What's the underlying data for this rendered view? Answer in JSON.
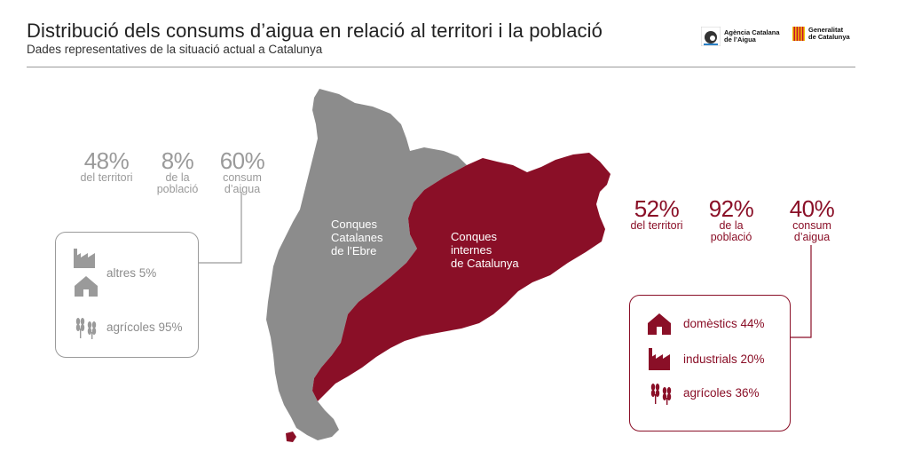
{
  "header": {
    "title": "Distribució dels consums d’aigua en relació al territori i la població",
    "subtitle": "Dades representatives de la situació actual a Catalunya"
  },
  "logos": {
    "aca": "Agència Catalana de l’Aigua",
    "aca_line1": "Agència Catalana",
    "aca_line2": "de l’Aigua",
    "gen_line1": "Generalitat",
    "gen_line2": "de Catalunya"
  },
  "colors": {
    "grey": "#9a9a9a",
    "red": "#8a0f27"
  },
  "map": {
    "ebre_label": "Conques\nCatalanes\nde l’Ebre",
    "internes_label": "Conques\ninternes\nde Catalunya"
  },
  "left_stats": [
    {
      "value": "48%",
      "label": "del territori"
    },
    {
      "value": "8%",
      "label": "de la\npoblació"
    },
    {
      "value": "60%",
      "label": "consum\nd’aigua"
    }
  ],
  "right_stats": [
    {
      "value": "52%",
      "label": "del territori"
    },
    {
      "value": "92%",
      "label": "de la\npoblació"
    },
    {
      "value": "40%",
      "label": "consum\nd’aigua"
    }
  ],
  "left_box": {
    "items": [
      {
        "icon": "factory-house-icon",
        "label": "altres 5%"
      },
      {
        "icon": "wheat-icon",
        "label": "agrícoles 95%"
      }
    ]
  },
  "right_box": {
    "items": [
      {
        "icon": "house-icon",
        "label": "domèstics 44%"
      },
      {
        "icon": "factory-icon",
        "label": "industrials 20%"
      },
      {
        "icon": "wheat-icon",
        "label": "agrícoles 36%"
      }
    ]
  }
}
